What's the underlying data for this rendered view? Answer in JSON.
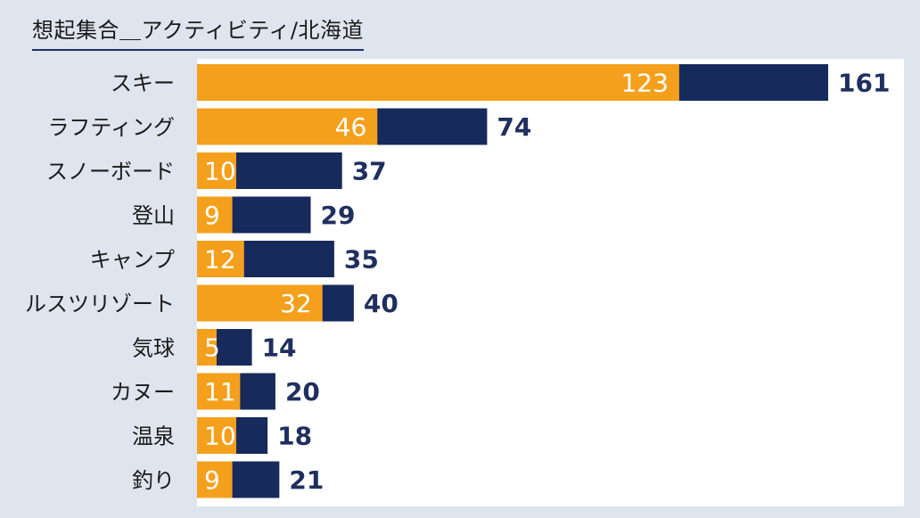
{
  "title": "想起集合＿アクティビティ/北海道",
  "colors": {
    "inner": "#f4a01d",
    "total": "#172a5c",
    "background": "#dfe5ee",
    "plot": "#ffffff"
  },
  "chart_data": {
    "type": "bar",
    "orientation": "horizontal",
    "title": "想起集合＿アクティビティ/北海道",
    "categories": [
      "スキー",
      "ラフティング",
      "スノーボード",
      "登山",
      "キャンプ",
      "ルスツリゾート",
      "気球",
      "カヌー",
      "温泉",
      "釣り"
    ],
    "series": [
      {
        "values": [
          123,
          46,
          10,
          9,
          12,
          32,
          5,
          11,
          10,
          9
        ],
        "color": "#f4a01d"
      },
      {
        "values": [
          161,
          74,
          37,
          29,
          35,
          40,
          14,
          20,
          18,
          21
        ],
        "color": "#172a5c"
      }
    ],
    "xlim": [
      0,
      180
    ],
    "grid": false,
    "legend": "none"
  }
}
